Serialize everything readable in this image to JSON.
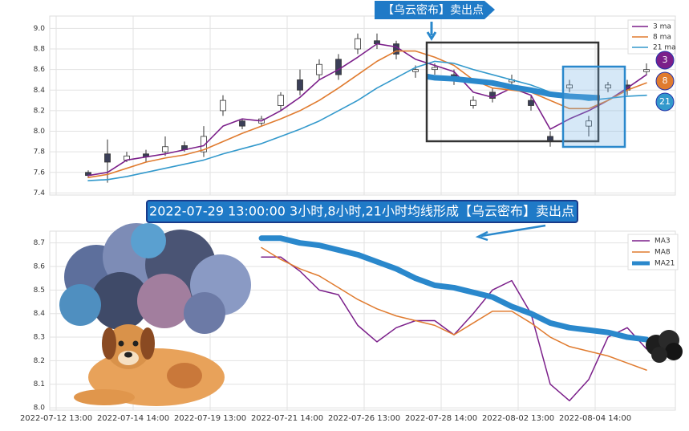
{
  "chart_data": [
    {
      "type": "candlestick",
      "annotations": [
        "【乌云密布】卖出点"
      ],
      "badge_labels": [
        "3",
        "8",
        "21"
      ],
      "x": [
        5,
        8,
        11,
        14,
        17,
        20,
        23,
        26,
        29,
        32,
        35,
        38,
        41,
        44,
        47,
        50,
        53,
        56,
        59,
        62,
        65,
        68,
        71,
        74,
        77,
        80,
        83,
        86,
        89,
        92
      ],
      "open": [
        7.6,
        7.78,
        7.72,
        7.78,
        7.8,
        7.86,
        7.8,
        8.2,
        8.1,
        8.08,
        8.25,
        8.5,
        8.55,
        8.7,
        8.8,
        8.88,
        8.85,
        8.58,
        8.6,
        8.55,
        8.25,
        8.38,
        8.48,
        8.3,
        7.95,
        8.42,
        8.05,
        8.42,
        8.45,
        8.58
      ],
      "high": [
        7.62,
        7.92,
        7.8,
        7.82,
        7.95,
        7.9,
        8.05,
        8.35,
        8.12,
        8.15,
        8.38,
        8.6,
        8.7,
        8.75,
        8.95,
        8.95,
        8.88,
        8.64,
        8.66,
        8.6,
        8.34,
        8.42,
        8.55,
        8.34,
        8.0,
        8.5,
        8.15,
        8.48,
        8.5,
        8.66
      ],
      "low": [
        7.55,
        7.5,
        7.7,
        7.7,
        7.76,
        7.8,
        7.75,
        8.15,
        8.02,
        8.05,
        8.2,
        8.35,
        8.5,
        8.5,
        8.75,
        8.8,
        8.7,
        8.52,
        8.55,
        8.45,
        8.22,
        8.28,
        8.45,
        8.2,
        7.85,
        8.38,
        7.95,
        8.38,
        8.35,
        8.55
      ],
      "close": [
        7.57,
        7.7,
        7.76,
        7.75,
        7.85,
        7.82,
        7.95,
        8.3,
        8.05,
        8.12,
        8.35,
        8.4,
        8.65,
        8.55,
        8.9,
        8.85,
        8.75,
        8.6,
        8.62,
        8.5,
        8.3,
        8.32,
        8.5,
        8.25,
        7.9,
        8.45,
        8.1,
        8.45,
        8.4,
        8.6
      ],
      "up_color": "#ffffff",
      "down_color": "#3b3f58",
      "series": [
        {
          "name": "3 ma",
          "color": "#7b1f8a",
          "values": [
            7.57,
            7.6,
            7.72,
            7.75,
            7.78,
            7.82,
            7.86,
            8.05,
            8.12,
            8.1,
            8.2,
            8.33,
            8.5,
            8.6,
            8.72,
            8.85,
            8.82,
            8.7,
            8.64,
            8.58,
            8.38,
            8.33,
            8.42,
            8.35,
            8.02,
            8.12,
            8.2,
            8.3,
            8.42,
            8.55
          ]
        },
        {
          "name": "8 ma",
          "color": "#e07b2f",
          "values": [
            7.55,
            7.58,
            7.64,
            7.7,
            7.74,
            7.77,
            7.82,
            7.9,
            7.98,
            8.05,
            8.12,
            8.2,
            8.3,
            8.42,
            8.55,
            8.68,
            8.78,
            8.78,
            8.72,
            8.64,
            8.5,
            8.42,
            8.4,
            8.38,
            8.3,
            8.22,
            8.22,
            8.3,
            8.4,
            8.47
          ]
        },
        {
          "name": "21 ma",
          "color": "#3399cc",
          "values": [
            7.52,
            7.53,
            7.56,
            7.6,
            7.64,
            7.68,
            7.72,
            7.78,
            7.83,
            7.88,
            7.95,
            8.02,
            8.1,
            8.2,
            8.3,
            8.42,
            8.52,
            8.62,
            8.68,
            8.66,
            8.6,
            8.55,
            8.5,
            8.45,
            8.38,
            8.33,
            8.3,
            8.32,
            8.34,
            8.35
          ]
        }
      ],
      "xlim": [
        -1,
        96.5
      ],
      "xticks": [
        0,
        12,
        24,
        36,
        48,
        60,
        72,
        84
      ],
      "ylim": [
        7.38,
        9.12
      ],
      "yticks": [
        7.4,
        7.6,
        7.8,
        {
          "value": 8,
          "label": "8.0"
        },
        8.2,
        8.4,
        8.6,
        8.8,
        {
          "value": 9,
          "label": "9.0"
        }
      ],
      "grid": true
    },
    {
      "type": "line",
      "annotations": [
        "2022-07-29 13:00:00 3小时,8小时,21小时均线形成【乌云密布】卖出点"
      ],
      "x": [
        32,
        35,
        38,
        41,
        44,
        47,
        50,
        53,
        56,
        59,
        62,
        65,
        68,
        71,
        74,
        77,
        80,
        83,
        86,
        89,
        92
      ],
      "series": [
        {
          "name": "MA3",
          "color": "#7b1f8a",
          "width": 1.5,
          "values": [
            8.64,
            8.64,
            8.58,
            8.5,
            8.48,
            8.35,
            8.28,
            8.34,
            8.37,
            8.37,
            8.31,
            8.4,
            8.5,
            8.54,
            8.4,
            8.1,
            8.03,
            8.12,
            8.3,
            8.34,
            8.25
          ]
        },
        {
          "name": "MA8",
          "color": "#e07b2f",
          "width": 1.5,
          "values": [
            8.68,
            8.63,
            8.59,
            8.56,
            8.51,
            8.46,
            8.42,
            8.39,
            8.37,
            8.35,
            8.31,
            8.36,
            8.41,
            8.41,
            8.36,
            8.3,
            8.26,
            8.24,
            8.22,
            8.19,
            8.16
          ]
        },
        {
          "name": "MA21",
          "color": "#2a88cc",
          "width": 7,
          "values": [
            8.72,
            8.72,
            8.7,
            8.69,
            8.67,
            8.65,
            8.62,
            8.59,
            8.55,
            8.52,
            8.51,
            8.49,
            8.47,
            8.43,
            8.4,
            8.36,
            8.34,
            8.33,
            8.32,
            8.3,
            8.29
          ]
        }
      ],
      "xlim": [
        -1,
        96.5
      ],
      "xticks": [
        {
          "value": 0,
          "label": "2022-07-12 13:00"
        },
        {
          "value": 12,
          "label": "2022-07-14 14:00"
        },
        {
          "value": 24,
          "label": "2022-07-19 13:00"
        },
        {
          "value": 36,
          "label": "2022-07-21 14:00"
        },
        {
          "value": 48,
          "label": "2022-07-26 13:00"
        },
        {
          "value": 60,
          "label": "2022-07-28 14:00"
        },
        {
          "value": 72,
          "label": "2022-08-02 13:00"
        },
        {
          "value": 84,
          "label": "2022-08-04 14:00"
        }
      ],
      "ylim": [
        7.99,
        8.75
      ],
      "yticks": [
        {
          "value": 8,
          "label": "8.0"
        },
        8.1,
        8.2,
        8.3,
        8.4,
        8.5,
        8.6,
        8.7
      ],
      "grid": true
    }
  ]
}
